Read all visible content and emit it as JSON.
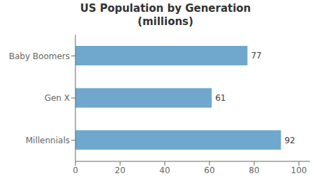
{
  "chart_data": {
    "type": "bar",
    "title": "US Population by Generation\n(millions)",
    "categories": [
      "Millennials",
      "Gen X",
      "Baby Boomers"
    ],
    "values": [
      92,
      61,
      77
    ],
    "color": "#6fa8cc",
    "orientation": "horizontal",
    "xlim": [
      0,
      105
    ],
    "xticks": [
      0,
      20,
      40,
      60,
      80,
      100
    ],
    "data_labels": true,
    "grid": false
  }
}
